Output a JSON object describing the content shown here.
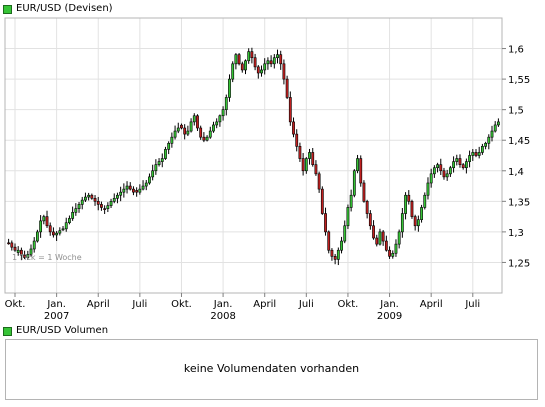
{
  "price_legend": {
    "label": "EUR/USD (Devisen)",
    "color": "#36c436"
  },
  "volume_legend": {
    "label": "EUR/USD Volumen",
    "color": "#36c436"
  },
  "tick_note": "1 Tick = 1 Woche",
  "volume_message": "keine Volumendaten vorhanden",
  "chart_data": {
    "type": "candlestick",
    "ylim": [
      1.2,
      1.65
    ],
    "y_ticks": [
      "1,25",
      "1,3",
      "1,35",
      "1,4",
      "1,45",
      "1,5",
      "1,55",
      "1,6"
    ],
    "y_tick_values": [
      1.25,
      1.3,
      1.35,
      1.4,
      1.45,
      1.5,
      1.55,
      1.6
    ],
    "x_ticks": [
      {
        "label": "Okt.",
        "year": "",
        "pos": 2
      },
      {
        "label": "Jan.",
        "year": "2007",
        "pos": 15
      },
      {
        "label": "April",
        "year": "",
        "pos": 28
      },
      {
        "label": "Juli",
        "year": "",
        "pos": 41
      },
      {
        "label": "Okt.",
        "year": "",
        "pos": 54
      },
      {
        "label": "Jan.",
        "year": "2008",
        "pos": 67
      },
      {
        "label": "April",
        "year": "",
        "pos": 80
      },
      {
        "label": "Juli",
        "year": "",
        "pos": 93
      },
      {
        "label": "Okt.",
        "year": "",
        "pos": 106
      },
      {
        "label": "Jan.",
        "year": "2009",
        "pos": 119
      },
      {
        "label": "April",
        "year": "",
        "pos": 132
      },
      {
        "label": "Juli",
        "year": "",
        "pos": 145
      }
    ],
    "y_axis_position": "right",
    "grid": true,
    "up_color": "#36c436",
    "down_color": "#c02020",
    "close_series": [
      1.282,
      1.275,
      1.27,
      1.27,
      1.262,
      1.258,
      1.263,
      1.272,
      1.285,
      1.3,
      1.318,
      1.325,
      1.31,
      1.3,
      1.295,
      1.298,
      1.302,
      1.305,
      1.315,
      1.322,
      1.332,
      1.338,
      1.345,
      1.352,
      1.357,
      1.36,
      1.355,
      1.35,
      1.345,
      1.34,
      1.338,
      1.343,
      1.35,
      1.355,
      1.36,
      1.365,
      1.37,
      1.375,
      1.37,
      1.365,
      1.365,
      1.37,
      1.375,
      1.38,
      1.39,
      1.4,
      1.41,
      1.415,
      1.42,
      1.435,
      1.445,
      1.455,
      1.465,
      1.47,
      1.47,
      1.46,
      1.465,
      1.48,
      1.49,
      1.47,
      1.455,
      1.45,
      1.455,
      1.465,
      1.475,
      1.48,
      1.49,
      1.5,
      1.52,
      1.55,
      1.575,
      1.59,
      1.575,
      1.565,
      1.58,
      1.595,
      1.585,
      1.57,
      1.56,
      1.565,
      1.575,
      1.58,
      1.575,
      1.585,
      1.59,
      1.575,
      1.55,
      1.52,
      1.48,
      1.46,
      1.44,
      1.42,
      1.4,
      1.42,
      1.43,
      1.41,
      1.395,
      1.37,
      1.33,
      1.3,
      1.27,
      1.26,
      1.255,
      1.27,
      1.285,
      1.31,
      1.34,
      1.36,
      1.4,
      1.42,
      1.38,
      1.35,
      1.33,
      1.31,
      1.29,
      1.28,
      1.3,
      1.285,
      1.27,
      1.26,
      1.265,
      1.28,
      1.3,
      1.33,
      1.36,
      1.35,
      1.325,
      1.31,
      1.32,
      1.34,
      1.36,
      1.38,
      1.395,
      1.405,
      1.41,
      1.4,
      1.39,
      1.395,
      1.405,
      1.415,
      1.42,
      1.41,
      1.405,
      1.415,
      1.425,
      1.43,
      1.425,
      1.43,
      1.44,
      1.445,
      1.455,
      1.465,
      1.475,
      1.48
    ]
  }
}
